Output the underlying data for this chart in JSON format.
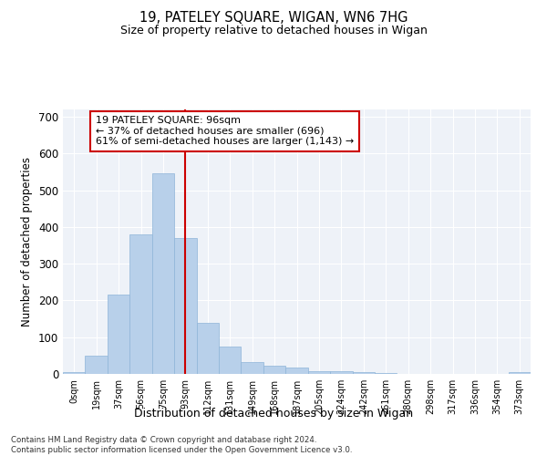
{
  "title1": "19, PATELEY SQUARE, WIGAN, WN6 7HG",
  "title2": "Size of property relative to detached houses in Wigan",
  "xlabel": "Distribution of detached houses by size in Wigan",
  "ylabel": "Number of detached properties",
  "bar_color": "#b8d0ea",
  "bar_edge_color": "#8eb4d8",
  "background_color": "#eef2f8",
  "grid_color": "#ffffff",
  "categories": [
    "0sqm",
    "19sqm",
    "37sqm",
    "56sqm",
    "75sqm",
    "93sqm",
    "112sqm",
    "131sqm",
    "149sqm",
    "168sqm",
    "187sqm",
    "205sqm",
    "224sqm",
    "242sqm",
    "261sqm",
    "280sqm",
    "298sqm",
    "317sqm",
    "336sqm",
    "354sqm",
    "373sqm"
  ],
  "values": [
    5,
    50,
    215,
    380,
    545,
    370,
    140,
    75,
    33,
    22,
    17,
    8,
    8,
    5,
    3,
    0,
    1,
    0,
    0,
    0,
    5
  ],
  "vline_x": 5.0,
  "annotation_line1": "19 PATELEY SQUARE: 96sqm",
  "annotation_line2": "← 37% of detached houses are smaller (696)",
  "annotation_line3": "61% of semi-detached houses are larger (1,143) →",
  "annotation_box_color": "#ffffff",
  "annotation_edge_color": "#cc0000",
  "vline_color": "#cc0000",
  "ylim": [
    0,
    720
  ],
  "yticks": [
    0,
    100,
    200,
    300,
    400,
    500,
    600,
    700
  ],
  "footer1": "Contains HM Land Registry data © Crown copyright and database right 2024.",
  "footer2": "Contains public sector information licensed under the Open Government Licence v3.0."
}
